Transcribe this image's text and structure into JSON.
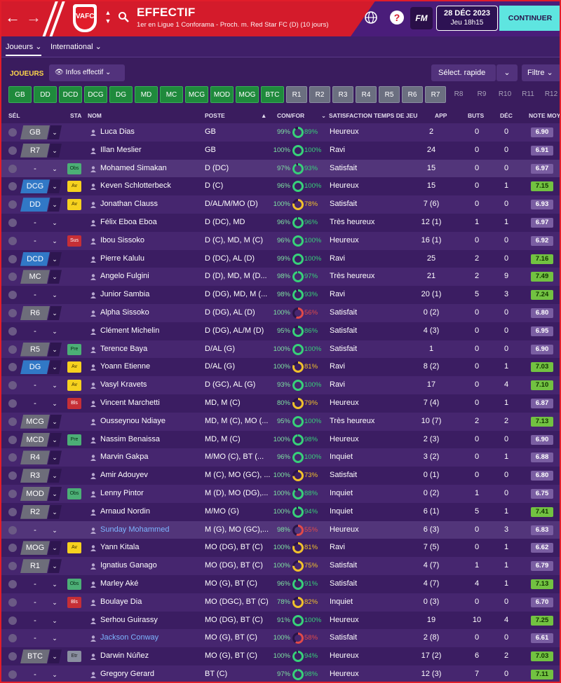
{
  "header": {
    "title": "EFFECTIF",
    "subtitle": "1er en Ligue 1 Conforama - Proch. m. Red Star FC (D) (10 jours)",
    "crest_text": "VAFC",
    "fm_label": "FM",
    "date": "28 DÉC 2023",
    "time": "Jeu 18h15",
    "continue_label": "CONTINUER",
    "help_label": "?"
  },
  "tabs": [
    {
      "label": "Joueurs ⌄"
    },
    {
      "label": "International ⌄"
    }
  ],
  "filters": {
    "joueurs_label": "JOUEURS",
    "infos_label": "Infos effectif ⌄",
    "select_rapide": "Sélect. rapide",
    "filtre": "Filtre ⌄"
  },
  "chips": [
    "GB",
    "DD",
    "DCD",
    "DCG",
    "DG",
    "MD",
    "MC",
    "MCG",
    "MOD",
    "MOG",
    "BTC",
    "R1",
    "R2",
    "R3",
    "R4",
    "R5",
    "R6",
    "R7",
    "R8",
    "R9",
    "R10",
    "R11",
    "R12"
  ],
  "columns": {
    "sel": "SÉL",
    "sta": "STA",
    "nom": "NOM",
    "poste": "POSTE",
    "sort": "▲",
    "confor": "CON/FOR",
    "filter": "⌄",
    "satisfaction": "SATISFACTION TEMPS DE JEU",
    "app": "APP",
    "buts": "BUTS",
    "dec": "DÉC",
    "note": "NOTE MOY"
  },
  "players": [
    {
      "pos": "GB",
      "pos_style": "grey",
      "status": "",
      "name": "Luca Dias",
      "link": false,
      "poste": "GB",
      "con": "99%",
      "for": "89%",
      "for_val": 89,
      "sat": "Heureux",
      "app": "2",
      "buts": "0",
      "dec": "0",
      "note": "6.90",
      "note_style": "purple"
    },
    {
      "pos": "R7",
      "pos_style": "grey",
      "status": "",
      "name": "Illan Meslier",
      "link": false,
      "poste": "GB",
      "con": "100%",
      "for": "100%",
      "for_val": 100,
      "sat": "Ravi",
      "app": "24",
      "buts": "0",
      "dec": "0",
      "note": "6.91",
      "note_style": "purple"
    },
    {
      "pos": "-",
      "pos_style": "empty",
      "status": "Obs",
      "name": "Mohamed Simakan",
      "link": false,
      "poste": "D (DC)",
      "con": "97%",
      "for": "93%",
      "for_val": 93,
      "sat": "Satisfait",
      "app": "15",
      "buts": "0",
      "dec": "0",
      "note": "6.97",
      "note_style": "purple"
    },
    {
      "pos": "DCG",
      "pos_style": "blue",
      "status": "Av",
      "name": "Keven Schlotterbeck",
      "link": false,
      "poste": "D (C)",
      "con": "96%",
      "for": "100%",
      "for_val": 100,
      "sat": "Heureux",
      "app": "15",
      "buts": "0",
      "dec": "1",
      "note": "7.15",
      "note_style": "green"
    },
    {
      "pos": "DD",
      "pos_style": "blue",
      "status": "Av",
      "name": "Jonathan Clauss",
      "link": false,
      "poste": "D/AL/M/MO (D)",
      "con": "100%",
      "for": "78%",
      "for_val": 78,
      "sat": "Satisfait",
      "app": "7 (6)",
      "buts": "0",
      "dec": "0",
      "note": "6.93",
      "note_style": "purple"
    },
    {
      "pos": "-",
      "pos_style": "empty",
      "status": "",
      "name": "Félix Eboa Eboa",
      "link": false,
      "poste": "D (DC), MD",
      "con": "96%",
      "for": "96%",
      "for_val": 96,
      "sat": "Très heureux",
      "app": "12 (1)",
      "buts": "1",
      "dec": "1",
      "note": "6.97",
      "note_style": "purple"
    },
    {
      "pos": "-",
      "pos_style": "empty",
      "status": "Sus",
      "name": "Ibou Sissoko",
      "link": false,
      "poste": "D (C), MD, M (C)",
      "con": "96%",
      "for": "100%",
      "for_val": 100,
      "sat": "Heureux",
      "app": "16 (1)",
      "buts": "0",
      "dec": "0",
      "note": "6.92",
      "note_style": "purple"
    },
    {
      "pos": "DCD",
      "pos_style": "blue",
      "status": "",
      "name": "Pierre Kalulu",
      "link": false,
      "poste": "D (DC), AL (D)",
      "con": "99%",
      "for": "100%",
      "for_val": 100,
      "sat": "Ravi",
      "app": "25",
      "buts": "2",
      "dec": "0",
      "note": "7.16",
      "note_style": "green"
    },
    {
      "pos": "MC",
      "pos_style": "grey",
      "status": "",
      "name": "Angelo Fulgini",
      "link": false,
      "poste": "D (D), MD, M (D...",
      "con": "98%",
      "for": "97%",
      "for_val": 97,
      "sat": "Très heureux",
      "app": "21",
      "buts": "2",
      "dec": "9",
      "note": "7.49",
      "note_style": "green"
    },
    {
      "pos": "-",
      "pos_style": "empty",
      "status": "",
      "name": "Junior Sambia",
      "link": false,
      "poste": "D (DG), MD, M (...",
      "con": "98%",
      "for": "93%",
      "for_val": 93,
      "sat": "Ravi",
      "app": "20 (1)",
      "buts": "5",
      "dec": "3",
      "note": "7.24",
      "note_style": "green"
    },
    {
      "pos": "R6",
      "pos_style": "grey",
      "status": "",
      "name": "Alpha Sissoko",
      "link": false,
      "poste": "D (DG), AL (D)",
      "con": "100%",
      "for": "56%",
      "for_val": 56,
      "sat": "Satisfait",
      "app": "0 (2)",
      "buts": "0",
      "dec": "0",
      "note": "6.80",
      "note_style": "purple"
    },
    {
      "pos": "-",
      "pos_style": "empty",
      "status": "",
      "name": "Clément Michelin",
      "link": false,
      "poste": "D (DG), AL/M (D)",
      "con": "95%",
      "for": "86%",
      "for_val": 86,
      "sat": "Satisfait",
      "app": "4 (3)",
      "buts": "0",
      "dec": "0",
      "note": "6.95",
      "note_style": "purple"
    },
    {
      "pos": "R5",
      "pos_style": "grey",
      "status": "Pre",
      "name": "Terence Baya",
      "link": false,
      "poste": "D/AL (G)",
      "con": "100%",
      "for": "100%",
      "for_val": 100,
      "sat": "Satisfait",
      "app": "1",
      "buts": "0",
      "dec": "0",
      "note": "6.90",
      "note_style": "purple"
    },
    {
      "pos": "DG",
      "pos_style": "blue",
      "status": "Av",
      "name": "Yoann Etienne",
      "link": false,
      "poste": "D/AL (G)",
      "con": "100%",
      "for": "81%",
      "for_val": 81,
      "sat": "Ravi",
      "app": "8 (2)",
      "buts": "0",
      "dec": "1",
      "note": "7.03",
      "note_style": "green"
    },
    {
      "pos": "-",
      "pos_style": "empty",
      "status": "Av",
      "name": "Vasyl Kravets",
      "link": false,
      "poste": "D (GC), AL (G)",
      "con": "93%",
      "for": "100%",
      "for_val": 100,
      "sat": "Ravi",
      "app": "17",
      "buts": "0",
      "dec": "4",
      "note": "7.10",
      "note_style": "green"
    },
    {
      "pos": "-",
      "pos_style": "empty",
      "status": "Bls",
      "name": "Vincent Marchetti",
      "link": false,
      "poste": "MD, M (C)",
      "con": "80%",
      "for": "79%",
      "for_val": 79,
      "sat": "Heureux",
      "app": "7 (4)",
      "buts": "0",
      "dec": "1",
      "note": "6.87",
      "note_style": "purple"
    },
    {
      "pos": "MCG",
      "pos_style": "grey",
      "status": "",
      "name": "Ousseynou Ndiaye",
      "link": false,
      "poste": "MD, M (C), MO (...",
      "con": "95%",
      "for": "100%",
      "for_val": 100,
      "sat": "Très heureux",
      "app": "10 (7)",
      "buts": "2",
      "dec": "2",
      "note": "7.13",
      "note_style": "green"
    },
    {
      "pos": "MCD",
      "pos_style": "grey",
      "status": "Pre",
      "name": "Nassim Benaissa",
      "link": false,
      "poste": "MD, M (C)",
      "con": "100%",
      "for": "98%",
      "for_val": 98,
      "sat": "Heureux",
      "app": "2 (3)",
      "buts": "0",
      "dec": "0",
      "note": "6.90",
      "note_style": "purple"
    },
    {
      "pos": "R4",
      "pos_style": "grey",
      "status": "",
      "name": "Marvin Gakpa",
      "link": false,
      "poste": "M/MO (C), BT (...",
      "con": "96%",
      "for": "100%",
      "for_val": 100,
      "sat": "Inquiet",
      "app": "3 (2)",
      "buts": "0",
      "dec": "1",
      "note": "6.88",
      "note_style": "purple"
    },
    {
      "pos": "R3",
      "pos_style": "grey",
      "status": "",
      "name": "Amir Adouyev",
      "link": false,
      "poste": "M (C), MO (GC), ...",
      "con": "100%",
      "for": "73%",
      "for_val": 73,
      "sat": "Satisfait",
      "app": "0 (1)",
      "buts": "0",
      "dec": "0",
      "note": "6.80",
      "note_style": "purple"
    },
    {
      "pos": "MOD",
      "pos_style": "grey",
      "status": "Obs",
      "name": "Lenny Pintor",
      "link": false,
      "poste": "M (D), MO (DG),...",
      "con": "100%",
      "for": "88%",
      "for_val": 88,
      "sat": "Inquiet",
      "app": "0 (2)",
      "buts": "1",
      "dec": "0",
      "note": "6.75",
      "note_style": "purple"
    },
    {
      "pos": "R2",
      "pos_style": "grey",
      "status": "",
      "name": "Arnaud Nordin",
      "link": false,
      "poste": "M/MO (G)",
      "con": "100%",
      "for": "94%",
      "for_val": 94,
      "sat": "Inquiet",
      "app": "6 (1)",
      "buts": "5",
      "dec": "1",
      "note": "7.41",
      "note_style": "green"
    },
    {
      "pos": "-",
      "pos_style": "empty",
      "status": "",
      "name": "Sunday Mohammed",
      "link": true,
      "poste": "M (G), MO (GC),...",
      "con": "98%",
      "for": "55%",
      "for_val": 55,
      "sat": "Heureux",
      "app": "6 (3)",
      "buts": "0",
      "dec": "3",
      "note": "6.83",
      "note_style": "purple"
    },
    {
      "pos": "MOG",
      "pos_style": "grey",
      "status": "Av",
      "name": "Yann Kitala",
      "link": false,
      "poste": "MO (DG), BT (C)",
      "con": "100%",
      "for": "81%",
      "for_val": 81,
      "sat": "Ravi",
      "app": "7 (5)",
      "buts": "0",
      "dec": "1",
      "note": "6.62",
      "note_style": "purple"
    },
    {
      "pos": "R1",
      "pos_style": "grey",
      "status": "",
      "name": "Ignatius Ganago",
      "link": false,
      "poste": "MO (DG), BT (C)",
      "con": "100%",
      "for": "75%",
      "for_val": 75,
      "sat": "Satisfait",
      "app": "4 (7)",
      "buts": "1",
      "dec": "1",
      "note": "6.79",
      "note_style": "purple"
    },
    {
      "pos": "-",
      "pos_style": "empty",
      "status": "Obs",
      "name": "Marley Aké",
      "link": false,
      "poste": "MO (G), BT (C)",
      "con": "96%",
      "for": "91%",
      "for_val": 91,
      "sat": "Satisfait",
      "app": "4 (7)",
      "buts": "4",
      "dec": "1",
      "note": "7.13",
      "note_style": "green"
    },
    {
      "pos": "-",
      "pos_style": "empty",
      "status": "Bls",
      "name": "Boulaye Dia",
      "link": false,
      "poste": "MO (DGC), BT (C)",
      "con": "78%",
      "for": "82%",
      "for_val": 82,
      "sat": "Inquiet",
      "app": "0 (3)",
      "buts": "0",
      "dec": "0",
      "note": "6.70",
      "note_style": "purple"
    },
    {
      "pos": "-",
      "pos_style": "empty",
      "status": "",
      "name": "Serhou Guirassy",
      "link": false,
      "poste": "MO (DG), BT (C)",
      "con": "91%",
      "for": "100%",
      "for_val": 100,
      "sat": "Heureux",
      "app": "19",
      "buts": "10",
      "dec": "4",
      "note": "7.25",
      "note_style": "green"
    },
    {
      "pos": "-",
      "pos_style": "empty",
      "status": "",
      "name": "Jackson Conway",
      "link": true,
      "poste": "MO (G), BT (C)",
      "con": "100%",
      "for": "58%",
      "for_val": 58,
      "sat": "Satisfait",
      "app": "2 (8)",
      "buts": "0",
      "dec": "0",
      "note": "6.61",
      "note_style": "purple"
    },
    {
      "pos": "BTC",
      "pos_style": "grey",
      "status": "Etr",
      "name": "Darwin Núñez",
      "link": false,
      "poste": "MO (G), BT (C)",
      "con": "100%",
      "for": "94%",
      "for_val": 94,
      "sat": "Heureux",
      "app": "17 (2)",
      "buts": "6",
      "dec": "2",
      "note": "7.03",
      "note_style": "green"
    },
    {
      "pos": "-",
      "pos_style": "empty",
      "status": "",
      "name": "Gregory Gerard",
      "link": false,
      "poste": "BT (C)",
      "con": "97%",
      "for": "98%",
      "for_val": 98,
      "sat": "Heureux",
      "app": "12 (3)",
      "buts": "7",
      "dec": "0",
      "note": "7.11",
      "note_style": "green"
    }
  ],
  "colors": {
    "accent_red": "#d41b2b",
    "panel_purple": "#3b1d62",
    "continue_cyan": "#5ee5e0"
  }
}
